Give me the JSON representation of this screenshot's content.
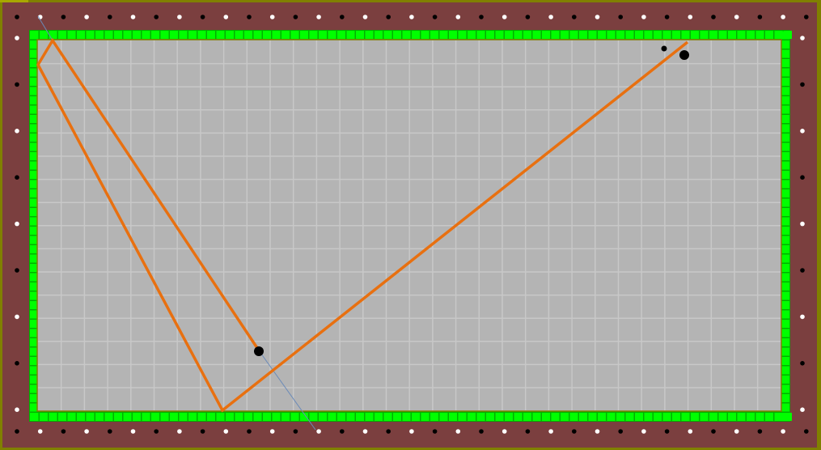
{
  "colors": {
    "frame": "#808000",
    "rail": "#7b3f3f",
    "cushion": "#00ff00",
    "cushion_edge": "#00b000",
    "felt": "#b4b4b4",
    "grid": "#c8c8c8",
    "trajectory": "#e87010",
    "aim_line": "#6a8ab8",
    "ball": "#000000",
    "diamond_light": "#ffffff",
    "diamond_dark": "#000000"
  },
  "table": {
    "trajectory_points": [
      [
        320,
        433
      ],
      [
        65,
        50
      ],
      [
        47,
        80
      ],
      [
        275,
        507
      ],
      [
        850,
        52
      ]
    ],
    "aim_segments": [
      [
        [
          47,
          20
        ],
        [
          65,
          50
        ]
      ],
      [
        [
          320,
          433
        ],
        [
          390,
          531
        ]
      ]
    ],
    "balls": [
      {
        "name": "cue-ball",
        "x": 320,
        "y": 434,
        "r": 6
      },
      {
        "name": "target-ball",
        "x": 846,
        "y": 68,
        "r": 6
      },
      {
        "name": "small-ball",
        "x": 821,
        "y": 60,
        "r": 3.5
      }
    ]
  }
}
